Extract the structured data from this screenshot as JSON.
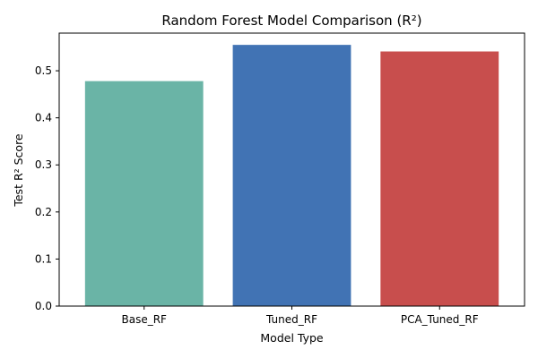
{
  "chart_data": {
    "type": "bar",
    "title": "Random Forest Model Comparison (R²)",
    "xlabel": "Model Type",
    "ylabel": "Test R² Score",
    "categories": [
      "Base_RF",
      "Tuned_RF",
      "PCA_Tuned_RF"
    ],
    "values": [
      0.478,
      0.555,
      0.541
    ],
    "colors": [
      "#6ab4a6",
      "#4173b4",
      "#c84e4d"
    ],
    "ylim": [
      0,
      0.58
    ],
    "yticks": [
      0.0,
      0.1,
      0.2,
      0.3,
      0.4,
      0.5
    ],
    "ytick_labels": [
      "0.0",
      "0.1",
      "0.2",
      "0.3",
      "0.4",
      "0.5"
    ],
    "grid": false,
    "legend": "none"
  }
}
